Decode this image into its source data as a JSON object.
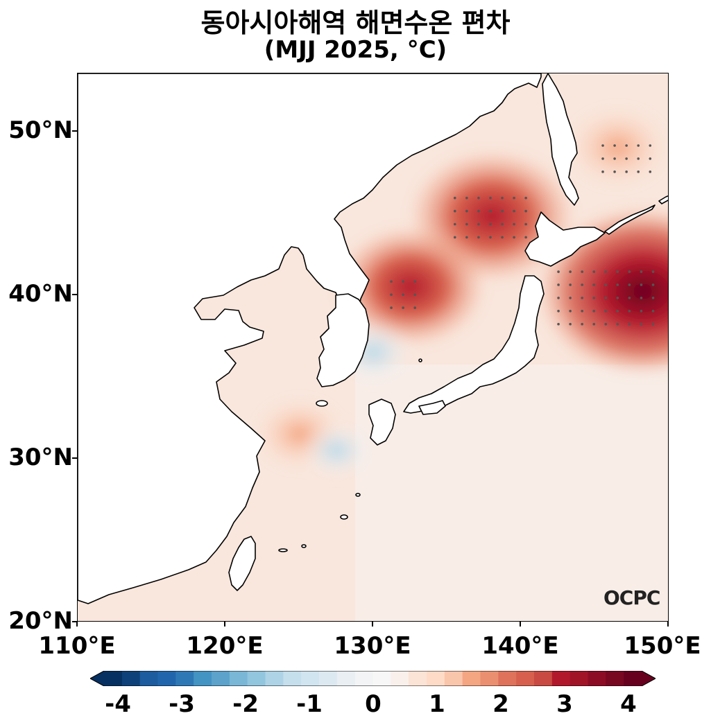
{
  "title": "동아시아해역 해면수온 편차",
  "subtitle": "(MJJ 2025, °C)",
  "logo_text": "OCPC",
  "y_ticks": [
    "50°N",
    "40°N",
    "30°N",
    "20°N"
  ],
  "x_ticks": [
    "110°E",
    "120°E",
    "130°E",
    "140°E",
    "150°E"
  ],
  "colorbar": {
    "labels": [
      "-4",
      "-3",
      "-2",
      "-1",
      "0",
      "1",
      "2",
      "3",
      "4"
    ],
    "range": [
      -4,
      4
    ],
    "colormap": "RdBu_r",
    "extend": "both"
  },
  "map": {
    "lon_range": [
      110,
      150
    ],
    "lat_range": [
      20,
      53.5
    ],
    "land_color": "#ffffff",
    "coastline_color": "#000000",
    "stipple": "dots mark significant anomalies",
    "anomaly_hotspots_deg": [
      {
        "lon": 148.2,
        "lat": 40.2,
        "value": 4.2
      },
      {
        "lon": 138.0,
        "lat": 44.8,
        "value": 3.0
      },
      {
        "lon": 132.5,
        "lat": 40.5,
        "value": 2.6
      },
      {
        "lon": 125.0,
        "lat": 31.5,
        "value": 1.0
      },
      {
        "lon": 146.5,
        "lat": 49.0,
        "value": 1.3
      },
      {
        "lon": 130.0,
        "lat": 36.5,
        "value": -0.7
      },
      {
        "lon": 127.5,
        "lat": 30.5,
        "value": -0.5
      }
    ]
  }
}
